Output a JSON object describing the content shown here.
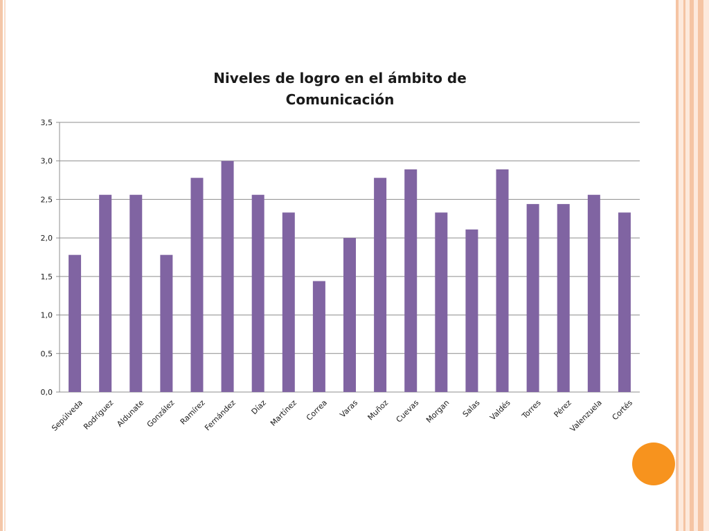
{
  "chart_data": {
    "type": "bar",
    "title": "Niveles de logro en el ámbito de Comunicación",
    "categories": [
      "Sepúlveda",
      "Rodríguez",
      "Aldunate",
      "González",
      "Ramírez",
      "Fernández",
      "Díaz",
      "Martínez",
      "Correa",
      "Varas",
      "Muñoz",
      "Cuevas",
      "Morgan",
      "Salas",
      "Valdés",
      "Torres",
      "Pérez",
      "Valenzuela",
      "Cortés"
    ],
    "values": [
      1.78,
      2.56,
      2.56,
      1.78,
      2.78,
      3.0,
      2.56,
      2.33,
      1.44,
      2.0,
      2.78,
      2.89,
      2.33,
      2.11,
      2.89,
      2.44,
      2.44,
      2.56,
      2.33
    ],
    "yticks": [
      "0,0",
      "0,5",
      "1,0",
      "1,5",
      "2,0",
      "2,5",
      "3,0",
      "3,5"
    ],
    "ylim": [
      0,
      3.5
    ],
    "grid": true,
    "legend": "none",
    "bar_color": "#8064a2"
  },
  "decor": {
    "accent_color": "#f7931e",
    "stripe_color": "#f5c4a3"
  }
}
